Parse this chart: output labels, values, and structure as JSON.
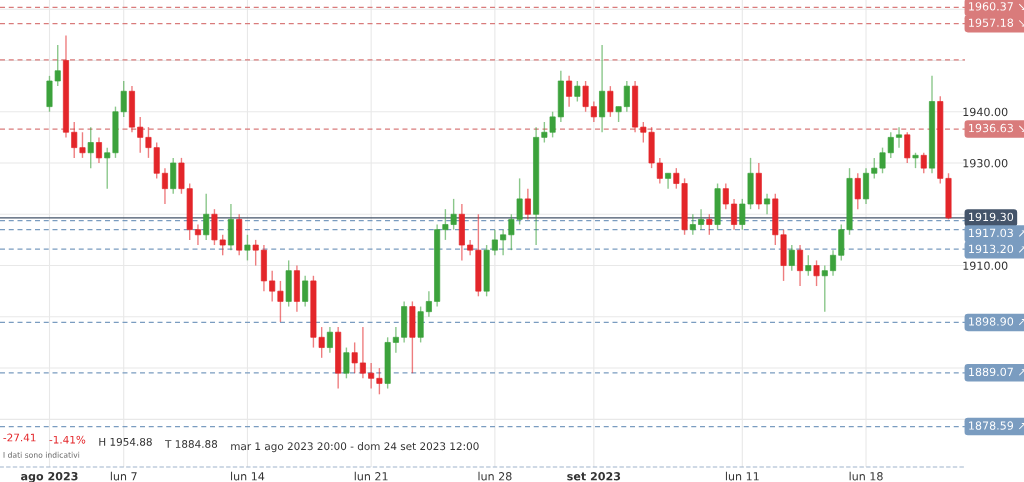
{
  "chart_data": {
    "type": "candlestick",
    "categories": [
      "ago 2023",
      null,
      null,
      null,
      null,
      null,
      null,
      null,
      null,
      "lun 7",
      null,
      null,
      null,
      null,
      null,
      null,
      null,
      null,
      null,
      null,
      null,
      null,
      null,
      null,
      "lun 14",
      null,
      null,
      null,
      null,
      null,
      null,
      null,
      null,
      null,
      null,
      null,
      null,
      null,
      null,
      "lun 21",
      null,
      null,
      null,
      null,
      null,
      null,
      null,
      null,
      null,
      null,
      null,
      null,
      null,
      null,
      "lun 28",
      null,
      null,
      null,
      null,
      null,
      null,
      null,
      null,
      null,
      null,
      null,
      "set 2023",
      null,
      null,
      null,
      null,
      null,
      null,
      null,
      null,
      null,
      null,
      null,
      null,
      null,
      null,
      null,
      null,
      null,
      "lun 11",
      null,
      null,
      null,
      null,
      null,
      null,
      null,
      null,
      null,
      null,
      null,
      null,
      null,
      null,
      "lun 18",
      null,
      null,
      null,
      null,
      null,
      null,
      null,
      null,
      null,
      null
    ],
    "ohlc": [
      [
        1941,
        1947,
        1940,
        1946
      ],
      [
        1946,
        1953,
        1945,
        1948
      ],
      [
        1950,
        1954.88,
        1935,
        1936
      ],
      [
        1936,
        1938,
        1931,
        1933
      ],
      [
        1933,
        1936,
        1931,
        1932
      ],
      [
        1932,
        1937,
        1929,
        1934
      ],
      [
        1934,
        1935,
        1930,
        1931
      ],
      [
        1931,
        1933,
        1925,
        1932
      ],
      [
        1932,
        1941,
        1931,
        1940
      ],
      [
        1940,
        1946,
        1939,
        1944
      ],
      [
        1944,
        1945,
        1936,
        1937
      ],
      [
        1937,
        1939,
        1932,
        1935
      ],
      [
        1935,
        1937,
        1931,
        1933
      ],
      [
        1933,
        1934,
        1927,
        1928
      ],
      [
        1928,
        1929,
        1922,
        1925
      ],
      [
        1925,
        1931,
        1924,
        1930
      ],
      [
        1930,
        1931,
        1924,
        1925
      ],
      [
        1925,
        1926,
        1915,
        1917
      ],
      [
        1917,
        1918,
        1914,
        1916
      ],
      [
        1916,
        1924,
        1915,
        1920
      ],
      [
        1920,
        1921,
        1914,
        1915
      ],
      [
        1915,
        1916,
        1912,
        1914
      ],
      [
        1914,
        1922,
        1913,
        1919
      ],
      [
        1919,
        1920,
        1912,
        1913
      ],
      [
        1913,
        1916,
        1911,
        1914
      ],
      [
        1914,
        1915,
        1910,
        1913
      ],
      [
        1913,
        1914,
        1905,
        1907
      ],
      [
        1907,
        1909,
        1903,
        1905
      ],
      [
        1905,
        1907,
        1899,
        1903
      ],
      [
        1903,
        1911,
        1902,
        1909
      ],
      [
        1909,
        1910,
        1901,
        1903
      ],
      [
        1903,
        1908,
        1902,
        1907
      ],
      [
        1907,
        1908,
        1894,
        1896
      ],
      [
        1896,
        1898,
        1892,
        1894
      ],
      [
        1894,
        1898,
        1893,
        1897
      ],
      [
        1897,
        1898,
        1886,
        1889
      ],
      [
        1889,
        1894,
        1888,
        1893
      ],
      [
        1893,
        1895,
        1889,
        1891
      ],
      [
        1891,
        1898,
        1888,
        1889
      ],
      [
        1889,
        1891,
        1886,
        1888
      ],
      [
        1888,
        1890,
        1884.88,
        1887
      ],
      [
        1887,
        1896,
        1886,
        1895
      ],
      [
        1895,
        1898,
        1893,
        1896
      ],
      [
        1896,
        1903,
        1895,
        1902
      ],
      [
        1902,
        1903,
        1889,
        1896
      ],
      [
        1896,
        1902,
        1895,
        1901
      ],
      [
        1901,
        1905,
        1900,
        1903
      ],
      [
        1903,
        1918,
        1902,
        1917
      ],
      [
        1917,
        1921,
        1915,
        1918
      ],
      [
        1918,
        1923,
        1917,
        1920
      ],
      [
        1920,
        1922,
        1911,
        1914
      ],
      [
        1914,
        1915,
        1912,
        1913
      ],
      [
        1913,
        1920,
        1904,
        1905
      ],
      [
        1905,
        1914,
        1904,
        1913
      ],
      [
        1913,
        1917,
        1912,
        1915
      ],
      [
        1915,
        1917,
        1912,
        1916
      ],
      [
        1916,
        1920,
        1913,
        1919
      ],
      [
        1919,
        1927,
        1918,
        1923
      ],
      [
        1923,
        1925,
        1919,
        1920
      ],
      [
        1920,
        1937,
        1914,
        1935
      ],
      [
        1935,
        1938,
        1934,
        1936
      ],
      [
        1936,
        1940,
        1935,
        1939
      ],
      [
        1939,
        1948,
        1938,
        1946
      ],
      [
        1946,
        1947,
        1941,
        1943
      ],
      [
        1943,
        1946,
        1942,
        1945
      ],
      [
        1945,
        1946,
        1940,
        1941
      ],
      [
        1941,
        1942,
        1938,
        1939
      ],
      [
        1939,
        1953,
        1936,
        1944
      ],
      [
        1944,
        1945,
        1939,
        1940
      ],
      [
        1940,
        1941,
        1938,
        1941
      ],
      [
        1941,
        1946,
        1940,
        1945
      ],
      [
        1945,
        1946,
        1936,
        1937
      ],
      [
        1937,
        1938,
        1934,
        1936
      ],
      [
        1936,
        1937,
        1929,
        1930
      ],
      [
        1930,
        1931,
        1926,
        1927
      ],
      [
        1927,
        1928,
        1925,
        1928
      ],
      [
        1928,
        1929,
        1925,
        1926
      ],
      [
        1926,
        1927,
        1916,
        1917
      ],
      [
        1917,
        1920,
        1916,
        1918
      ],
      [
        1918,
        1921,
        1917,
        1919
      ],
      [
        1919,
        1920,
        1916,
        1918
      ],
      [
        1918,
        1926,
        1917,
        1925
      ],
      [
        1925,
        1926,
        1921,
        1922
      ],
      [
        1922,
        1923,
        1917,
        1918
      ],
      [
        1918,
        1923,
        1917,
        1922
      ],
      [
        1922,
        1931,
        1921,
        1928
      ],
      [
        1928,
        1930,
        1921,
        1922
      ],
      [
        1922,
        1924,
        1920,
        1923
      ],
      [
        1923,
        1924,
        1914,
        1916
      ],
      [
        1916,
        1917,
        1907,
        1910
      ],
      [
        1910,
        1914,
        1909,
        1913
      ],
      [
        1913,
        1914,
        1906,
        1909
      ],
      [
        1909,
        1912,
        1908,
        1910
      ],
      [
        1910,
        1911,
        1906,
        1908
      ],
      [
        1908,
        1910,
        1901,
        1909
      ],
      [
        1909,
        1913,
        1908,
        1912
      ],
      [
        1912,
        1918,
        1911,
        1917
      ],
      [
        1917,
        1929,
        1916,
        1927
      ],
      [
        1927,
        1928,
        1921,
        1923
      ],
      [
        1923,
        1929,
        1922,
        1928
      ],
      [
        1928,
        1931,
        1927,
        1929
      ],
      [
        1929,
        1933,
        1928,
        1932
      ],
      [
        1932,
        1936,
        1931,
        1935
      ],
      [
        1935,
        1937,
        1933,
        1935.5
      ],
      [
        1935.5,
        1936,
        1930,
        1931
      ],
      [
        1931,
        1932,
        1929,
        1931.5
      ],
      [
        1931.5,
        1932,
        1928,
        1929
      ],
      [
        1929,
        1947,
        1928,
        1942
      ],
      [
        1942,
        1943,
        1926,
        1927
      ],
      [
        1927,
        1928,
        1919,
        1919.3
      ]
    ],
    "colors": [
      "#3ca23c",
      "#3ca23c",
      "#e3262a",
      "#e3262a",
      "#e3262a",
      "#3ca23c",
      "#e3262a",
      "#3ca23c",
      "#3ca23c",
      "#3ca23c",
      "#e3262a",
      "#e3262a",
      "#e3262a",
      "#e3262a",
      "#e3262a",
      "#3ca23c",
      "#e3262a",
      "#e3262a",
      "#e3262a",
      "#3ca23c",
      "#e3262a",
      "#e3262a",
      "#3ca23c",
      "#e3262a",
      "#3ca23c",
      "#e3262a",
      "#e3262a",
      "#e3262a",
      "#e3262a",
      "#3ca23c",
      "#e3262a",
      "#3ca23c",
      "#e3262a",
      "#e3262a",
      "#3ca23c",
      "#e3262a",
      "#3ca23c",
      "#e3262a",
      "#e3262a",
      "#e3262a",
      "#e3262a",
      "#3ca23c",
      "#3ca23c",
      "#3ca23c",
      "#e3262a",
      "#3ca23c",
      "#3ca23c",
      "#3ca23c",
      "#3ca23c",
      "#3ca23c",
      "#e3262a",
      "#e3262a",
      "#e3262a",
      "#3ca23c",
      "#3ca23c",
      "#3ca23c",
      "#3ca23c",
      "#3ca23c",
      "#e3262a",
      "#3ca23c",
      "#3ca23c",
      "#3ca23c",
      "#3ca23c",
      "#e3262a",
      "#3ca23c",
      "#e3262a",
      "#e3262a",
      "#3ca23c",
      "#e3262a",
      "#3ca23c",
      "#3ca23c",
      "#e3262a",
      "#e3262a",
      "#e3262a",
      "#e3262a",
      "#3ca23c",
      "#e3262a",
      "#e3262a",
      "#3ca23c",
      "#3ca23c",
      "#e3262a",
      "#3ca23c",
      "#e3262a",
      "#e3262a",
      "#3ca23c",
      "#3ca23c",
      "#e3262a",
      "#3ca23c",
      "#e3262a",
      "#e3262a",
      "#3ca23c",
      "#e3262a",
      "#3ca23c",
      "#e3262a",
      "#3ca23c",
      "#3ca23c",
      "#3ca23c",
      "#3ca23c",
      "#e3262a",
      "#3ca23c",
      "#3ca23c",
      "#3ca23c",
      "#3ca23c",
      "#3ca23c",
      "#e3262a",
      "#3ca23c",
      "#e3262a",
      "#3ca23c",
      "#e3262a",
      "#e3262a"
    ],
    "ylim": [
      1870.7,
      1961.8
    ],
    "yticks": [
      {
        "value": 1880,
        "label": null
      },
      {
        "value": 1890,
        "label": null
      },
      {
        "value": 1900,
        "label": null
      },
      {
        "value": 1910,
        "label": "1910.00"
      },
      {
        "value": 1920,
        "label": null
      },
      {
        "value": 1930,
        "label": "1930.00"
      },
      {
        "value": 1940,
        "label": "1940.00"
      },
      {
        "value": 1950,
        "label": null
      },
      {
        "value": 1960,
        "label": null
      }
    ],
    "grid": true,
    "ref_lines": [
      {
        "axis": "y",
        "value": 1960.37,
        "label": "1960.37 ↘",
        "color": "#d97b7b",
        "line_style": "dashed"
      },
      {
        "axis": "y",
        "value": 1957.18,
        "label": "1957.18 ↘",
        "color": "#d97b7b",
        "line_style": "dashed"
      },
      {
        "axis": "y",
        "value": 1950.1,
        "label": null,
        "color": "#d97b7b",
        "line_style": "dashed"
      },
      {
        "axis": "y",
        "value": 1936.63,
        "label": "1936.63 ↘",
        "color": "#d97b7b",
        "line_style": "dashed"
      },
      {
        "axis": "y",
        "value": 1918.75,
        "label": null,
        "color": "#7a9cc0",
        "line_style": "dashed"
      },
      {
        "axis": "y",
        "value": 1917.03,
        "label": "1917.03 ↗",
        "color": "#7a9cc0",
        "line_style": "dashed"
      },
      {
        "axis": "y",
        "value": 1913.2,
        "label": "1913.20 ↗",
        "color": "#7a9cc0",
        "line_style": "dashed"
      },
      {
        "axis": "y",
        "value": 1898.9,
        "label": "1898.90 ↗",
        "color": "#7a9cc0",
        "line_style": "dashed"
      },
      {
        "axis": "y",
        "value": 1889.07,
        "label": "1889.07 ↗",
        "color": "#7a9cc0",
        "line_style": "dashed"
      },
      {
        "axis": "y",
        "value": 1878.59,
        "label": "1878.59 ↗",
        "color": "#7a9cc0",
        "line_style": "dashed"
      },
      {
        "axis": "y",
        "value": 1919.3,
        "label": "1919.30",
        "color": "#44546a",
        "line_style": "solid"
      }
    ],
    "annotations": [
      "-27.41",
      "-1.41%",
      "H 1954.88",
      "T 1884.88",
      "mar 1 ago 2023 20:00 - dom 24 set 2023 12:00",
      "I dati sono indicativi"
    ]
  }
}
